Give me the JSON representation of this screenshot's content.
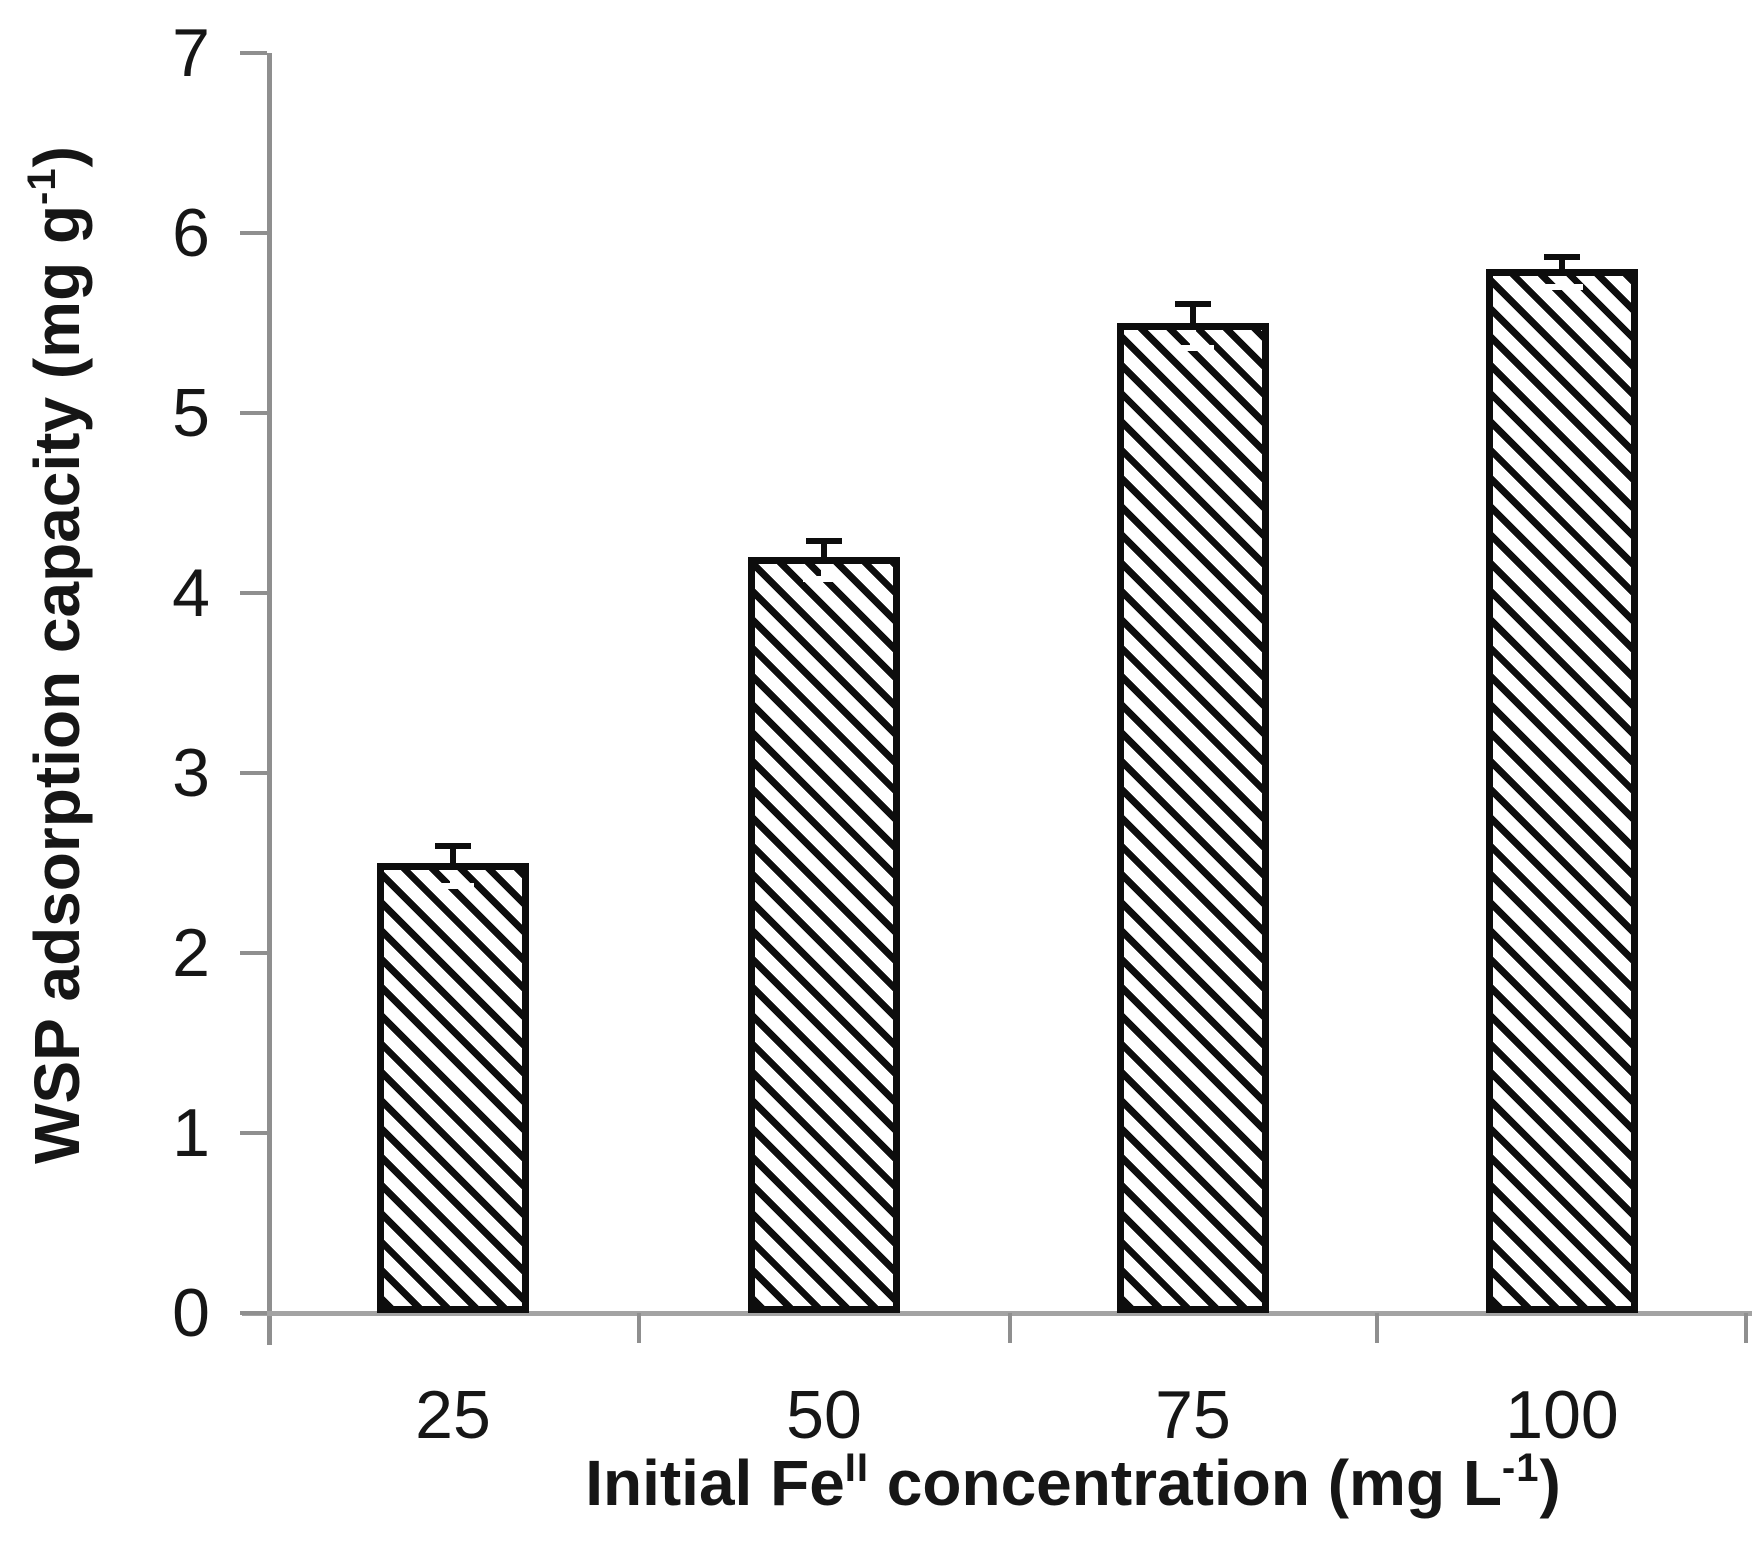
{
  "chart_data": {
    "type": "bar",
    "title": "",
    "categories": [
      "25",
      "50",
      "75",
      "100"
    ],
    "values": [
      2.5,
      4.2,
      5.5,
      5.8
    ],
    "errors": [
      0.08,
      0.07,
      0.09,
      0.05
    ],
    "xlabel": "Initial Fe(II) concentration (mg L-1)",
    "ylabel": "WSP adsorption capacity (mg g-1)",
    "ylim": [
      0,
      7
    ],
    "ytick_labels": [
      "7",
      "6",
      "5",
      "4",
      "3",
      "2",
      "1",
      "0"
    ],
    "grid": "off",
    "legend": "none",
    "bar_fill": "#ffffff",
    "bar_hatch": "diagonal-down-black",
    "bar_stroke": "#0d0d0d",
    "axis_color": "#8f8f8f",
    "text_color": "#161616",
    "xlabel_parts": {
      "pre": "Initial Fe",
      "sup1": "II",
      "mid": " concentration (mg L",
      "sup2": "-1",
      "post": ")"
    },
    "ylabel_parts": {
      "pre": "WSP adsorption capacity (mg g",
      "sup": "-1",
      "post": ")"
    }
  }
}
